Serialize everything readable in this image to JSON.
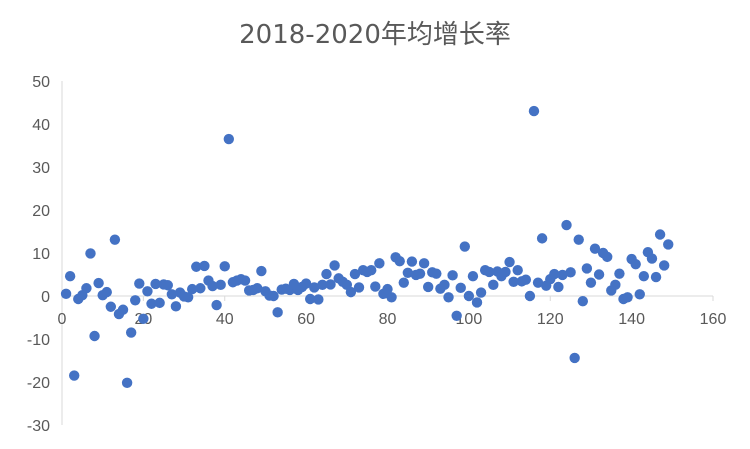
{
  "chart_data": {
    "type": "scatter",
    "title": "2018-2020年均增长率",
    "xlabel": "",
    "ylabel": "",
    "xlim": [
      0,
      160
    ],
    "ylim": [
      -30,
      50
    ],
    "x_ticks": [
      0,
      20,
      40,
      60,
      80,
      100,
      120,
      140,
      160
    ],
    "y_ticks": [
      50,
      40,
      30,
      20,
      10,
      0,
      -10,
      -20,
      -30
    ],
    "grid": false,
    "legend": "none",
    "marker_color": "#4472C4",
    "series": [
      {
        "values": [
          {
            "x": 1,
            "y": 0.5
          },
          {
            "x": 2,
            "y": 4.6
          },
          {
            "x": 3,
            "y": -18.5
          },
          {
            "x": 4,
            "y": -0.7
          },
          {
            "x": 5,
            "y": 0.2
          },
          {
            "x": 6,
            "y": 1.8
          },
          {
            "x": 7,
            "y": 9.9
          },
          {
            "x": 8,
            "y": -9.3
          },
          {
            "x": 9,
            "y": 3.0
          },
          {
            "x": 10,
            "y": 0.2
          },
          {
            "x": 11,
            "y": 0.9
          },
          {
            "x": 12,
            "y": -2.5
          },
          {
            "x": 13,
            "y": 13.1
          },
          {
            "x": 14,
            "y": -4.2
          },
          {
            "x": 15,
            "y": -3.2
          },
          {
            "x": 16,
            "y": -20.2
          },
          {
            "x": 17,
            "y": -8.5
          },
          {
            "x": 18,
            "y": -1.0
          },
          {
            "x": 19,
            "y": 2.9
          },
          {
            "x": 20,
            "y": -5.3
          },
          {
            "x": 21,
            "y": 1.1
          },
          {
            "x": 22,
            "y": -1.8
          },
          {
            "x": 23,
            "y": 2.8
          },
          {
            "x": 24,
            "y": -1.6
          },
          {
            "x": 25,
            "y": 2.7
          },
          {
            "x": 26,
            "y": 2.5
          },
          {
            "x": 27,
            "y": 0.4
          },
          {
            "x": 28,
            "y": -2.4
          },
          {
            "x": 29,
            "y": 0.8
          },
          {
            "x": 30,
            "y": -0.1
          },
          {
            "x": 31,
            "y": -0.3
          },
          {
            "x": 32,
            "y": 1.6
          },
          {
            "x": 33,
            "y": 6.8
          },
          {
            "x": 34,
            "y": 1.8
          },
          {
            "x": 35,
            "y": 7.0
          },
          {
            "x": 36,
            "y": 3.6
          },
          {
            "x": 37,
            "y": 2.3
          },
          {
            "x": 38,
            "y": -2.1
          },
          {
            "x": 39,
            "y": 2.6
          },
          {
            "x": 40,
            "y": 6.9
          },
          {
            "x": 41,
            "y": 36.5
          },
          {
            "x": 42,
            "y": 3.2
          },
          {
            "x": 43,
            "y": 3.6
          },
          {
            "x": 44,
            "y": 3.9
          },
          {
            "x": 45,
            "y": 3.6
          },
          {
            "x": 46,
            "y": 1.3
          },
          {
            "x": 47,
            "y": 1.4
          },
          {
            "x": 48,
            "y": 1.8
          },
          {
            "x": 49,
            "y": 5.8
          },
          {
            "x": 50,
            "y": 1.1
          },
          {
            "x": 51,
            "y": 0.1
          },
          {
            "x": 52,
            "y": 0.0
          },
          {
            "x": 53,
            "y": -3.8
          },
          {
            "x": 54,
            "y": 1.5
          },
          {
            "x": 55,
            "y": 1.7
          },
          {
            "x": 56,
            "y": 1.4
          },
          {
            "x": 57,
            "y": 2.8
          },
          {
            "x": 58,
            "y": 1.4
          },
          {
            "x": 59,
            "y": 2.1
          },
          {
            "x": 60,
            "y": 2.9
          },
          {
            "x": 61,
            "y": -0.7
          },
          {
            "x": 62,
            "y": 2.0
          },
          {
            "x": 63,
            "y": -0.8
          },
          {
            "x": 64,
            "y": 2.6
          },
          {
            "x": 65,
            "y": 5.1
          },
          {
            "x": 66,
            "y": 2.7
          },
          {
            "x": 67,
            "y": 7.1
          },
          {
            "x": 68,
            "y": 4.1
          },
          {
            "x": 69,
            "y": 3.3
          },
          {
            "x": 70,
            "y": 2.6
          },
          {
            "x": 71,
            "y": 0.9
          },
          {
            "x": 72,
            "y": 5.1
          },
          {
            "x": 73,
            "y": 2.0
          },
          {
            "x": 74,
            "y": 6.0
          },
          {
            "x": 75,
            "y": 5.6
          },
          {
            "x": 76,
            "y": 6.0
          },
          {
            "x": 77,
            "y": 2.2
          },
          {
            "x": 78,
            "y": 7.6
          },
          {
            "x": 79,
            "y": 0.5
          },
          {
            "x": 80,
            "y": 1.6
          },
          {
            "x": 81,
            "y": -0.3
          },
          {
            "x": 82,
            "y": 9.0
          },
          {
            "x": 83,
            "y": 8.1
          },
          {
            "x": 84,
            "y": 3.1
          },
          {
            "x": 85,
            "y": 5.4
          },
          {
            "x": 86,
            "y": 8.0
          },
          {
            "x": 87,
            "y": 4.9
          },
          {
            "x": 88,
            "y": 5.2
          },
          {
            "x": 89,
            "y": 7.6
          },
          {
            "x": 90,
            "y": 2.1
          },
          {
            "x": 91,
            "y": 5.5
          },
          {
            "x": 92,
            "y": 5.2
          },
          {
            "x": 93,
            "y": 1.7
          },
          {
            "x": 94,
            "y": 2.6
          },
          {
            "x": 95,
            "y": -0.3
          },
          {
            "x": 96,
            "y": 4.8
          },
          {
            "x": 97,
            "y": -4.6
          },
          {
            "x": 98,
            "y": 1.9
          },
          {
            "x": 99,
            "y": 11.5
          },
          {
            "x": 100,
            "y": 0.0
          },
          {
            "x": 101,
            "y": 4.6
          },
          {
            "x": 102,
            "y": -1.5
          },
          {
            "x": 103,
            "y": 0.8
          },
          {
            "x": 104,
            "y": 6.0
          },
          {
            "x": 105,
            "y": 5.6
          },
          {
            "x": 106,
            "y": 2.6
          },
          {
            "x": 107,
            "y": 5.7
          },
          {
            "x": 108,
            "y": 4.6
          },
          {
            "x": 109,
            "y": 5.6
          },
          {
            "x": 110,
            "y": 7.9
          },
          {
            "x": 111,
            "y": 3.3
          },
          {
            "x": 112,
            "y": 6.0
          },
          {
            "x": 113,
            "y": 3.4
          },
          {
            "x": 114,
            "y": 3.8
          },
          {
            "x": 115,
            "y": 0.0
          },
          {
            "x": 116,
            "y": 43.0
          },
          {
            "x": 117,
            "y": 3.1
          },
          {
            "x": 118,
            "y": 13.4
          },
          {
            "x": 119,
            "y": 2.4
          },
          {
            "x": 120,
            "y": 3.9
          },
          {
            "x": 121,
            "y": 5.1
          },
          {
            "x": 122,
            "y": 2.1
          },
          {
            "x": 123,
            "y": 4.9
          },
          {
            "x": 124,
            "y": 16.5
          },
          {
            "x": 125,
            "y": 5.5
          },
          {
            "x": 126,
            "y": -14.4
          },
          {
            "x": 127,
            "y": 13.1
          },
          {
            "x": 128,
            "y": -1.2
          },
          {
            "x": 129,
            "y": 6.4
          },
          {
            "x": 130,
            "y": 3.1
          },
          {
            "x": 131,
            "y": 11.0
          },
          {
            "x": 132,
            "y": 5.0
          },
          {
            "x": 133,
            "y": 10.0
          },
          {
            "x": 134,
            "y": 9.1
          },
          {
            "x": 135,
            "y": 1.3
          },
          {
            "x": 136,
            "y": 2.6
          },
          {
            "x": 137,
            "y": 5.2
          },
          {
            "x": 138,
            "y": -0.7
          },
          {
            "x": 139,
            "y": -0.3
          },
          {
            "x": 140,
            "y": 8.6
          },
          {
            "x": 141,
            "y": 7.4
          },
          {
            "x": 142,
            "y": 0.4
          },
          {
            "x": 143,
            "y": 4.6
          },
          {
            "x": 144,
            "y": 10.2
          },
          {
            "x": 145,
            "y": 8.7
          },
          {
            "x": 146,
            "y": 4.4
          },
          {
            "x": 147,
            "y": 14.3
          },
          {
            "x": 148,
            "y": 7.1
          },
          {
            "x": 149,
            "y": 12.0
          }
        ]
      }
    ]
  }
}
